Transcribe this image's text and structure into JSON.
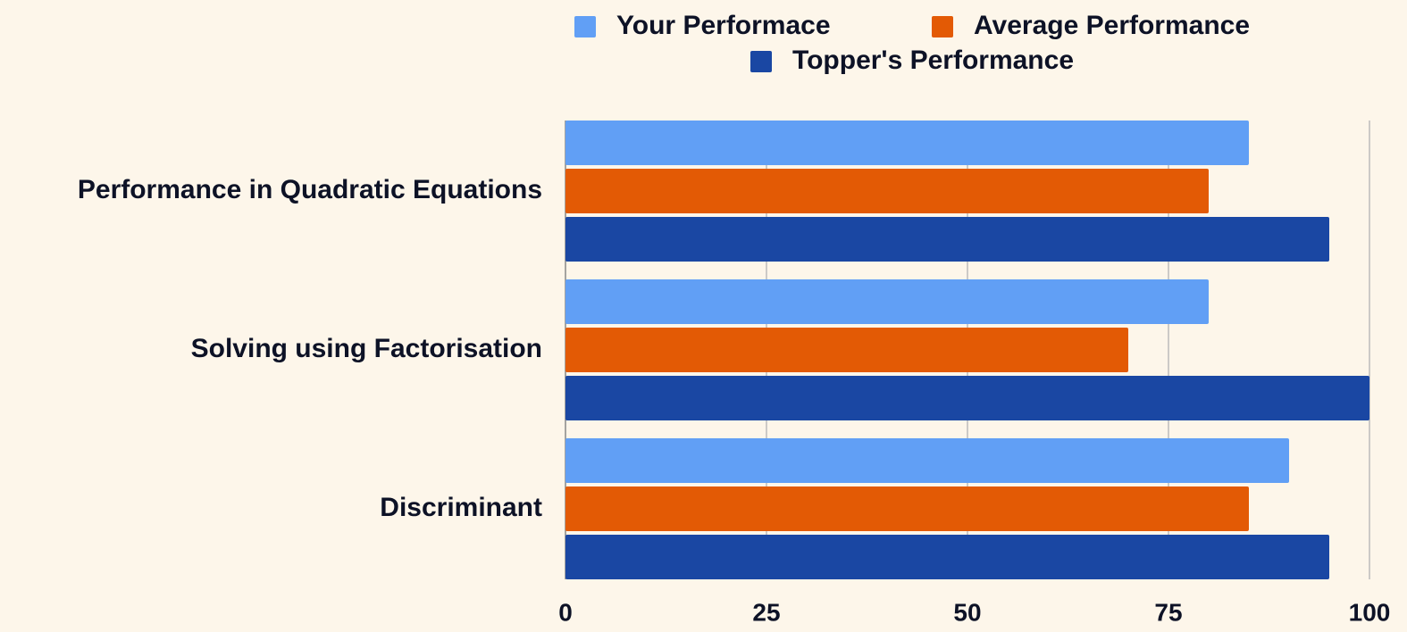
{
  "chart_data": {
    "type": "hbar",
    "categories": [
      "Performance in Quadratic Equations",
      "Solving using Factorisation",
      "Discriminant"
    ],
    "series": [
      {
        "name": "Your Performace",
        "color": "#619ff5",
        "values": [
          85,
          80,
          90
        ]
      },
      {
        "name": "Average Performance",
        "color": "#e35a05",
        "values": [
          80,
          70,
          85
        ]
      },
      {
        "name": "Topper's Performance",
        "color": "#1a47a3",
        "values": [
          95,
          100,
          95
        ]
      }
    ],
    "xlim": [
      0,
      100
    ],
    "xticks": [
      0,
      25,
      50,
      75,
      100
    ],
    "grid": true,
    "legend": "top"
  }
}
